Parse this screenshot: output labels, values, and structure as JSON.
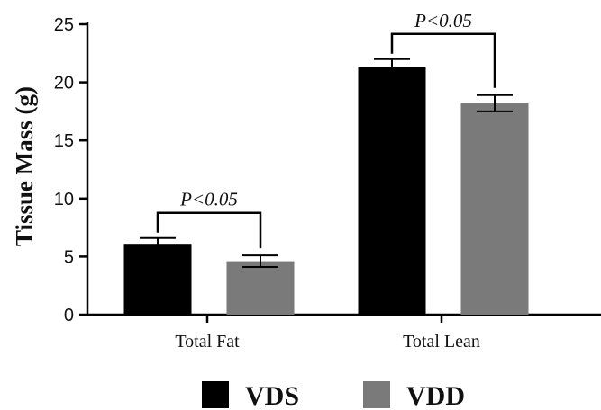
{
  "chart_data": {
    "type": "bar",
    "title": "",
    "xlabel": "",
    "ylabel": "Tissue Mass (g)",
    "ylim": [
      0,
      25
    ],
    "yticks": [
      0,
      5,
      10,
      15,
      20,
      25
    ],
    "grid": false,
    "legend_position": "bottom",
    "categories": [
      "Total Fat",
      "Total Lean"
    ],
    "series": [
      {
        "name": "VDS",
        "color": "#000000",
        "values": [
          6.1,
          21.3
        ],
        "errors": [
          0.5,
          0.7
        ]
      },
      {
        "name": "VDD",
        "color": "#7a7a7a",
        "values": [
          4.6,
          18.2
        ],
        "errors": [
          0.5,
          0.7
        ]
      }
    ],
    "annotations": [
      {
        "category_index": 0,
        "text": "P<0.05"
      },
      {
        "category_index": 1,
        "text": "P<0.05"
      }
    ]
  }
}
